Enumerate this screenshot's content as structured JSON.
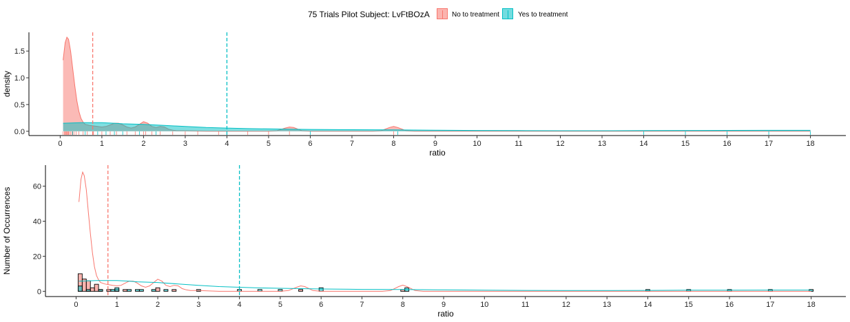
{
  "legend": {
    "title": "75 Trials Pilot Subject:  LvFtBOzA",
    "entries": [
      {
        "label": "No to treatment",
        "color": "#F8766D"
      },
      {
        "label": "Yes to treatment",
        "color": "#00BFC4"
      }
    ]
  },
  "chart_data": [
    {
      "type": "area",
      "title": "",
      "xlabel": "ratio",
      "ylabel": "density",
      "xlim": [
        -0.75,
        18.85
      ],
      "ylim": [
        -0.08,
        1.85
      ],
      "xticks": [
        0,
        1,
        2,
        3,
        4,
        5,
        6,
        7,
        8,
        9,
        10,
        11,
        12,
        13,
        14,
        15,
        16,
        17,
        18
      ],
      "yticks": [
        0.0,
        0.5,
        1.0,
        1.5
      ],
      "ytick_labels": [
        "0.0",
        "0.5",
        "1.0",
        "1.5"
      ],
      "grid": false,
      "legend_position": "top",
      "mean_lines": [
        {
          "series": "No to treatment",
          "x": 0.78
        },
        {
          "series": "Yes to treatment",
          "x": 4.0
        }
      ],
      "series": [
        {
          "name": "No to treatment",
          "x": [
            0.07,
            0.12,
            0.16,
            0.2,
            0.25,
            0.3,
            0.35,
            0.4,
            0.45,
            0.5,
            0.55,
            0.6,
            0.7,
            0.8,
            0.9,
            1.0,
            1.1,
            1.2,
            1.3,
            1.4,
            1.5,
            1.6,
            1.7,
            1.8,
            1.9,
            2.0,
            2.1,
            2.2,
            2.3,
            2.4,
            2.5,
            2.6,
            2.7,
            2.8,
            3.0,
            3.5,
            4.0,
            4.5,
            5.0,
            5.2,
            5.4,
            5.5,
            5.6,
            5.8,
            6.0,
            6.5,
            7.0,
            7.5,
            7.7,
            7.9,
            8.0,
            8.1,
            8.3,
            8.5,
            9.0,
            10,
            11,
            12,
            13,
            14,
            15,
            16,
            17,
            18
          ],
          "values": [
            1.33,
            1.66,
            1.76,
            1.72,
            1.5,
            1.18,
            0.85,
            0.57,
            0.37,
            0.24,
            0.17,
            0.13,
            0.11,
            0.1,
            0.09,
            0.08,
            0.09,
            0.12,
            0.15,
            0.15,
            0.12,
            0.08,
            0.06,
            0.08,
            0.13,
            0.18,
            0.15,
            0.09,
            0.07,
            0.09,
            0.08,
            0.04,
            0.02,
            0.01,
            0.01,
            0.0,
            0.0,
            0.0,
            0.0,
            0.01,
            0.06,
            0.08,
            0.07,
            0.01,
            0.0,
            0.0,
            0.0,
            0.0,
            0.01,
            0.07,
            0.09,
            0.07,
            0.01,
            0.0,
            0.0,
            0.0,
            0.0,
            0.0,
            0.0,
            0.0,
            0.0,
            0.0,
            0.0,
            0.0
          ]
        },
        {
          "name": "Yes to treatment",
          "x": [
            0.07,
            0.5,
            1.0,
            1.3,
            1.5,
            2.0,
            2.5,
            3.0,
            3.5,
            4.0,
            4.5,
            5.0,
            5.5,
            6.0,
            7.0,
            8.0,
            9.0,
            10,
            11,
            12,
            13,
            14,
            15,
            16,
            17,
            18
          ],
          "values": [
            0.15,
            0.16,
            0.16,
            0.15,
            0.14,
            0.13,
            0.11,
            0.09,
            0.07,
            0.06,
            0.05,
            0.045,
            0.04,
            0.035,
            0.03,
            0.025,
            0.02,
            0.015,
            0.012,
            0.01,
            0.01,
            0.012,
            0.015,
            0.017,
            0.018,
            0.018
          ]
        }
      ],
      "rug": {
        "No to treatment": [
          0.07,
          0.1,
          0.12,
          0.13,
          0.15,
          0.17,
          0.18,
          0.2,
          0.22,
          0.25,
          0.28,
          0.3,
          0.33,
          0.38,
          0.45,
          0.55,
          0.65,
          0.8,
          1.0,
          1.2,
          1.35,
          1.6,
          1.8,
          2.0,
          2.05,
          2.2,
          2.4,
          2.7,
          3.0,
          3.3,
          3.8,
          4.5,
          5.0,
          5.5,
          8.0
        ],
        "Yes to treatment": [
          0.3,
          0.6,
          0.9,
          1.1,
          1.3,
          1.5,
          1.9,
          2.3,
          4.0,
          6.0,
          8.1,
          14,
          15,
          16,
          17,
          18
        ]
      }
    },
    {
      "type": "bar",
      "title": "",
      "xlabel": "ratio",
      "ylabel": "Number of Occurrences",
      "xlim": [
        -0.75,
        18.85
      ],
      "ylim": [
        -3,
        72
      ],
      "xticks": [
        0,
        1,
        2,
        3,
        4,
        5,
        6,
        7,
        8,
        9,
        10,
        11,
        12,
        13,
        14,
        15,
        16,
        17,
        18
      ],
      "yticks": [
        0,
        20,
        40,
        60
      ],
      "ytick_labels": [
        "0",
        "20",
        "40",
        "60"
      ],
      "grid": false,
      "binwidth": 0.1,
      "mean_lines": [
        {
          "series": "No to treatment",
          "x": 0.78
        },
        {
          "series": "Yes to treatment",
          "x": 4.0
        }
      ],
      "bars": [
        {
          "series": "No to treatment",
          "x": 0.1,
          "count": 10
        },
        {
          "series": "No to treatment",
          "x": 0.2,
          "count": 7
        },
        {
          "series": "No to treatment",
          "x": 0.3,
          "count": 6
        },
        {
          "series": "No to treatment",
          "x": 0.4,
          "count": 2
        },
        {
          "series": "No to treatment",
          "x": 0.5,
          "count": 4
        },
        {
          "series": "No to treatment",
          "x": 0.6,
          "count": 1
        },
        {
          "series": "No to treatment",
          "x": 0.8,
          "count": 1
        },
        {
          "series": "No to treatment",
          "x": 1.0,
          "count": 1
        },
        {
          "series": "No to treatment",
          "x": 1.2,
          "count": 1
        },
        {
          "series": "No to treatment",
          "x": 2.0,
          "count": 2
        },
        {
          "series": "No to treatment",
          "x": 2.4,
          "count": 1
        },
        {
          "series": "No to treatment",
          "x": 5.5,
          "count": 1
        },
        {
          "series": "No to treatment",
          "x": 8.0,
          "count": 1
        },
        {
          "series": "Yes to treatment",
          "x": 0.1,
          "count": 3
        },
        {
          "series": "Yes to treatment",
          "x": 0.3,
          "count": 1
        },
        {
          "series": "Yes to treatment",
          "x": 0.6,
          "count": 1
        },
        {
          "series": "Yes to treatment",
          "x": 0.9,
          "count": 1
        },
        {
          "series": "Yes to treatment",
          "x": 1.0,
          "count": 2
        },
        {
          "series": "Yes to treatment",
          "x": 1.3,
          "count": 1
        },
        {
          "series": "Yes to treatment",
          "x": 1.5,
          "count": 1
        },
        {
          "series": "Yes to treatment",
          "x": 1.6,
          "count": 1
        },
        {
          "series": "Yes to treatment",
          "x": 1.9,
          "count": 1
        },
        {
          "series": "Yes to treatment",
          "x": 2.2,
          "count": 1
        },
        {
          "series": "Yes to treatment",
          "x": 3.0,
          "count": 1
        },
        {
          "series": "Yes to treatment",
          "x": 4.0,
          "count": 1
        },
        {
          "series": "Yes to treatment",
          "x": 4.5,
          "count": 1
        },
        {
          "series": "Yes to treatment",
          "x": 5.0,
          "count": 1
        },
        {
          "series": "Yes to treatment",
          "x": 6.0,
          "count": 2
        },
        {
          "series": "Yes to treatment",
          "x": 8.1,
          "count": 2
        },
        {
          "series": "Yes to treatment",
          "x": 14.0,
          "count": 1
        },
        {
          "series": "Yes to treatment",
          "x": 15.0,
          "count": 1
        },
        {
          "series": "Yes to treatment",
          "x": 16.0,
          "count": 1
        },
        {
          "series": "Yes to treatment",
          "x": 17.0,
          "count": 1
        },
        {
          "series": "Yes to treatment",
          "x": 18.0,
          "count": 1
        }
      ],
      "series": [
        {
          "name": "No to treatment",
          "x": [
            0.07,
            0.12,
            0.16,
            0.2,
            0.25,
            0.3,
            0.35,
            0.4,
            0.45,
            0.5,
            0.55,
            0.6,
            0.7,
            0.8,
            0.9,
            1.0,
            1.1,
            1.2,
            1.3,
            1.4,
            1.5,
            1.6,
            1.7,
            1.8,
            1.9,
            2.0,
            2.1,
            2.2,
            2.3,
            2.4,
            2.5,
            2.6,
            2.7,
            2.8,
            3.0,
            3.5,
            4.0,
            4.5,
            5.0,
            5.2,
            5.4,
            5.5,
            5.6,
            5.8,
            6.0,
            6.5,
            7.0,
            7.5,
            7.7,
            7.9,
            8.0,
            8.1,
            8.3,
            8.5,
            9.0,
            10,
            11,
            12,
            13,
            14,
            15,
            16,
            17,
            18
          ],
          "values": [
            51,
            64,
            68,
            66,
            58,
            45,
            33,
            22,
            14,
            9,
            6.5,
            5,
            4.2,
            3.8,
            3.4,
            3.1,
            3.4,
            4.6,
            5.8,
            5.8,
            4.6,
            3.1,
            2.3,
            3.1,
            5,
            6.9,
            5.8,
            3.4,
            2.7,
            3.4,
            3.1,
            1.5,
            0.8,
            0.4,
            0.4,
            0,
            0,
            0,
            0,
            0.4,
            2.3,
            3.1,
            2.7,
            0.4,
            0,
            0,
            0,
            0,
            0.4,
            2.7,
            3.5,
            2.7,
            0.4,
            0,
            0,
            0,
            0,
            0,
            0,
            0,
            0,
            0,
            0,
            0
          ]
        },
        {
          "name": "Yes to treatment",
          "x": [
            0.07,
            0.5,
            1.0,
            1.3,
            1.5,
            2.0,
            2.5,
            3.0,
            3.5,
            4.0,
            4.5,
            5.0,
            5.5,
            6.0,
            7.0,
            8.0,
            9.0,
            10,
            11,
            12,
            13,
            14,
            15,
            16,
            17,
            18
          ],
          "values": [
            5.8,
            6.1,
            6.1,
            5.8,
            5.4,
            5,
            4.2,
            3.4,
            2.7,
            2.3,
            1.9,
            1.7,
            1.5,
            1.3,
            1.1,
            1,
            0.8,
            0.6,
            0.5,
            0.4,
            0.4,
            0.5,
            0.6,
            0.65,
            0.7,
            0.7
          ]
        }
      ]
    }
  ]
}
